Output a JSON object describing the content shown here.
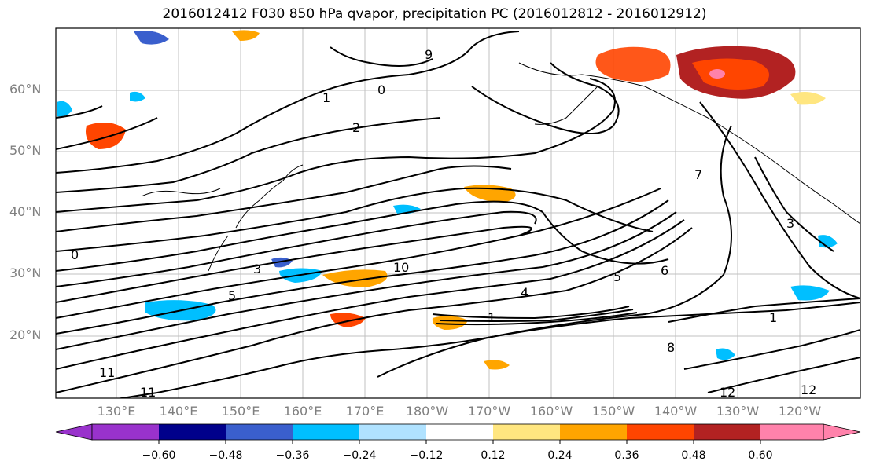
{
  "title": "2016012412 F030 850 hPa qvapor, precipitation PC (2016012812 - 2016012912)",
  "lat_labels": [
    "60°N",
    "50°N",
    "40°N",
    "30°N",
    "20°N"
  ],
  "lon_labels": [
    "130°E",
    "140°E",
    "150°E",
    "160°E",
    "170°E",
    "180°W",
    "170°W",
    "160°W",
    "150°W",
    "140°W",
    "130°W",
    "120°W"
  ],
  "colorbar": {
    "tick_labels": [
      "−0.60",
      "−0.48",
      "−0.36",
      "−0.24",
      "−0.12",
      "0.12",
      "0.24",
      "0.36",
      "0.48",
      "0.60"
    ],
    "colors": [
      "#9932cc",
      "#00008b",
      "#3a5fcd",
      "#00bfff",
      "#b0e2ff",
      "#ffffff",
      "#ffe680",
      "#ffa500",
      "#ff4500",
      "#b22222",
      "#ff82ab"
    ]
  },
  "contour_labels": [
    "0",
    "1",
    "2",
    "3",
    "4",
    "5",
    "6",
    "7",
    "8",
    "9",
    "10",
    "11",
    "12"
  ]
}
